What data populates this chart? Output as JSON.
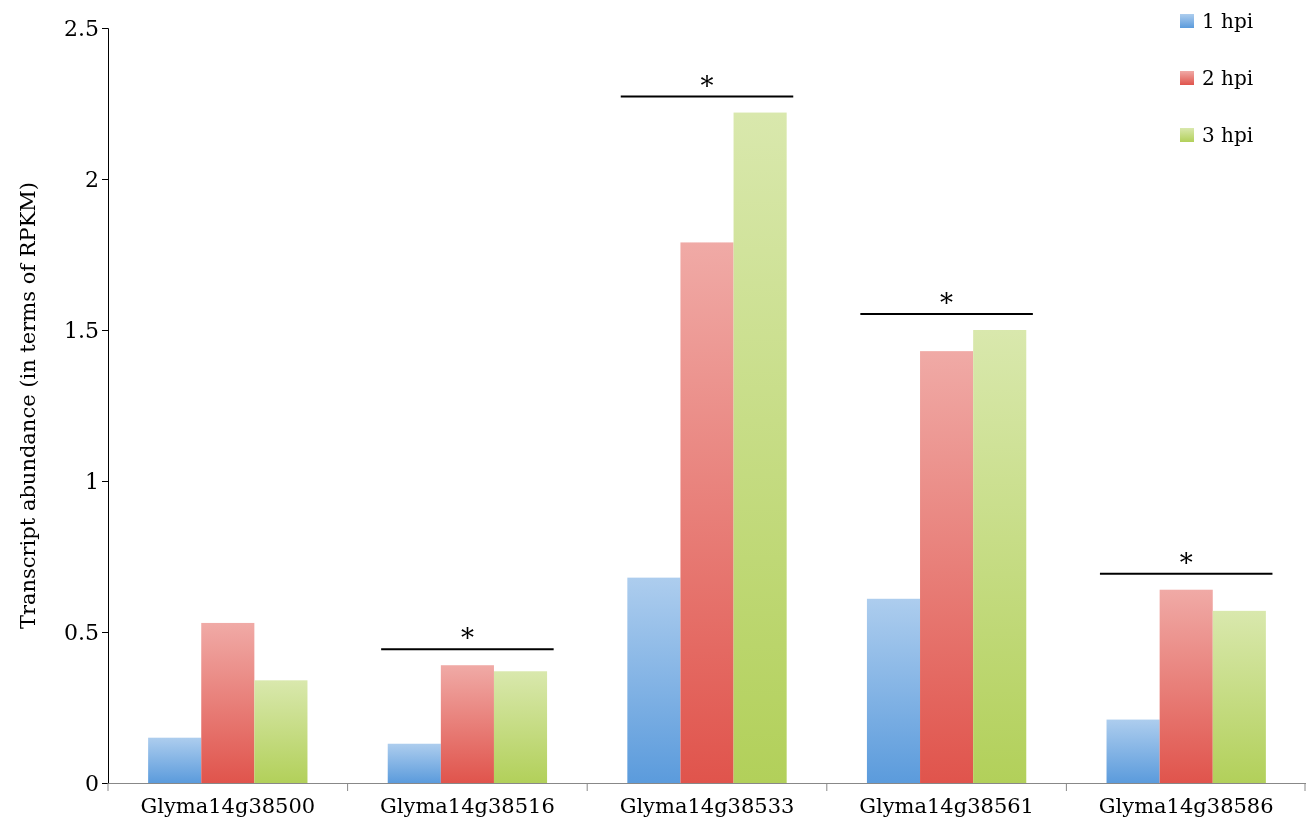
{
  "chart_data": {
    "type": "bar",
    "ylabel": "Transcript abundance (in terms of RPKM)",
    "categories": [
      "Glyma14g38500",
      "Glyma14g38516",
      "Glyma14g38533",
      "Glyma14g38561",
      "Glyma14g38586"
    ],
    "series": [
      {
        "name": "1 hpi",
        "color": "#5b9bdc",
        "values": [
          0.15,
          0.13,
          0.68,
          0.61,
          0.21
        ]
      },
      {
        "name": "2 hpi",
        "color": "#e0544c",
        "values": [
          0.53,
          0.39,
          1.79,
          1.43,
          0.64
        ]
      },
      {
        "name": "3 hpi",
        "color": "#b2d05a",
        "values": [
          0.34,
          0.37,
          2.22,
          1.5,
          0.57
        ]
      }
    ],
    "ylim": [
      0,
      2.5
    ],
    "yticks": [
      0,
      0.5,
      1,
      1.5,
      2,
      2.5
    ],
    "legend": "top right",
    "annotations": [
      "*",
      "*",
      "*",
      "*"
    ]
  }
}
